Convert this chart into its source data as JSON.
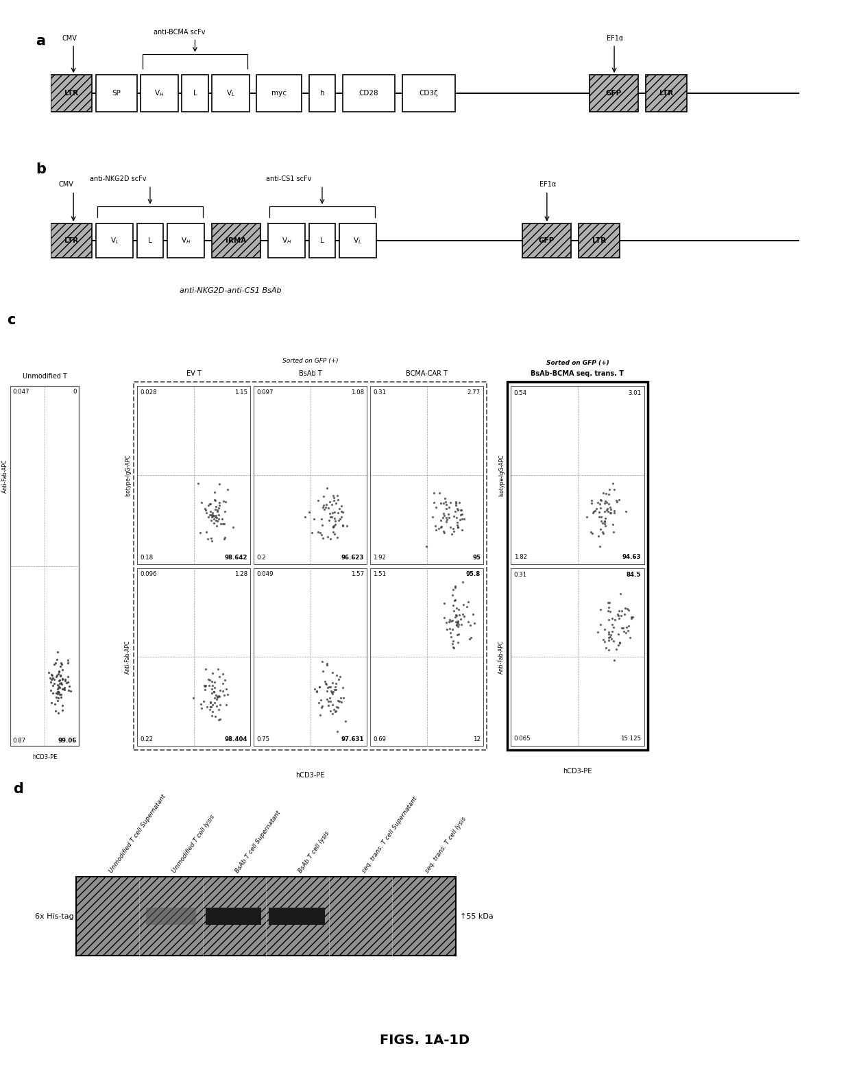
{
  "panel_a": {
    "label": "a",
    "title_cmv": "CMV",
    "title_scfv": "anti-BCMA scFv",
    "title_ef1a": "EF1α",
    "boxes_a": [
      {
        "label": "LTR",
        "hatched": true
      },
      {
        "label": "SP",
        "hatched": false
      },
      {
        "label": "V$_H$",
        "hatched": false
      },
      {
        "label": "L",
        "hatched": false
      },
      {
        "label": "V$_L$",
        "hatched": false
      },
      {
        "label": "myc",
        "hatched": false
      },
      {
        "label": "h",
        "hatched": false
      },
      {
        "label": "CD28",
        "hatched": false
      },
      {
        "label": "CD3ζ",
        "hatched": false
      },
      {
        "label": "GFP",
        "hatched": true
      },
      {
        "label": "LTR",
        "hatched": true
      }
    ]
  },
  "panel_b": {
    "label": "b",
    "bottom_label": "anti-NKG2D-anti-CS1 BsAb",
    "boxes_b": [
      {
        "label": "LTR",
        "hatched": true
      },
      {
        "label": "V$_L$",
        "hatched": false
      },
      {
        "label": "L",
        "hatched": false
      },
      {
        "label": "V$_H$",
        "hatched": false
      },
      {
        "label": "IRMA",
        "hatched": true
      },
      {
        "label": "V$_H$",
        "hatched": false
      },
      {
        "label": "L",
        "hatched": false
      },
      {
        "label": "V$_L$",
        "hatched": false
      },
      {
        "label": "GFP",
        "hatched": true
      },
      {
        "label": "LTR",
        "hatched": true
      }
    ]
  },
  "panel_c": {
    "label": "c",
    "col_titles": [
      "Unmodified T",
      "EV T",
      "BsAb T",
      "BCMA-CAR T",
      "BsAb-BCMA seq. trans. T"
    ],
    "unmod_values": [
      "0.047",
      "0",
      "0.87",
      "99.06"
    ],
    "ev_iso_values": [
      "0.028",
      "1.15",
      "0.18",
      "98.642"
    ],
    "bsab_iso_values": [
      "0.097",
      "1.08",
      "0.2",
      "96.623"
    ],
    "bcma_iso_values": [
      "0.31",
      "2.77",
      "1.92",
      "95"
    ],
    "bsab_bcma_iso_values": [
      "0.54",
      "3.01",
      "1.82",
      "94.63"
    ],
    "ev_fab_values": [
      "0.096",
      "1.28",
      "0.22",
      "98.404"
    ],
    "bsab_fab_values": [
      "0.049",
      "1.57",
      "0.75",
      "97.631"
    ],
    "bcma_fab_values": [
      "1.51",
      "95.8",
      "0.69",
      "12"
    ],
    "bsab_bcma_fab_values": [
      "0.31",
      "84.5",
      "0.065",
      "15.125"
    ]
  },
  "panel_d": {
    "label": "d",
    "lane_labels": [
      "Unmodified T cell Supernatant",
      "Unmodified T cell lysis",
      "BsAb T cell Supernatant",
      "BsAb T cell lysis",
      "seq. trans. T cell Supernatant",
      "seq. trans. T cell lysis"
    ],
    "row_label": "6x His-tag",
    "band_label": "↑55 kDa"
  },
  "figure_title": "FIGS. 1A-1D",
  "bg_color": "#ffffff"
}
